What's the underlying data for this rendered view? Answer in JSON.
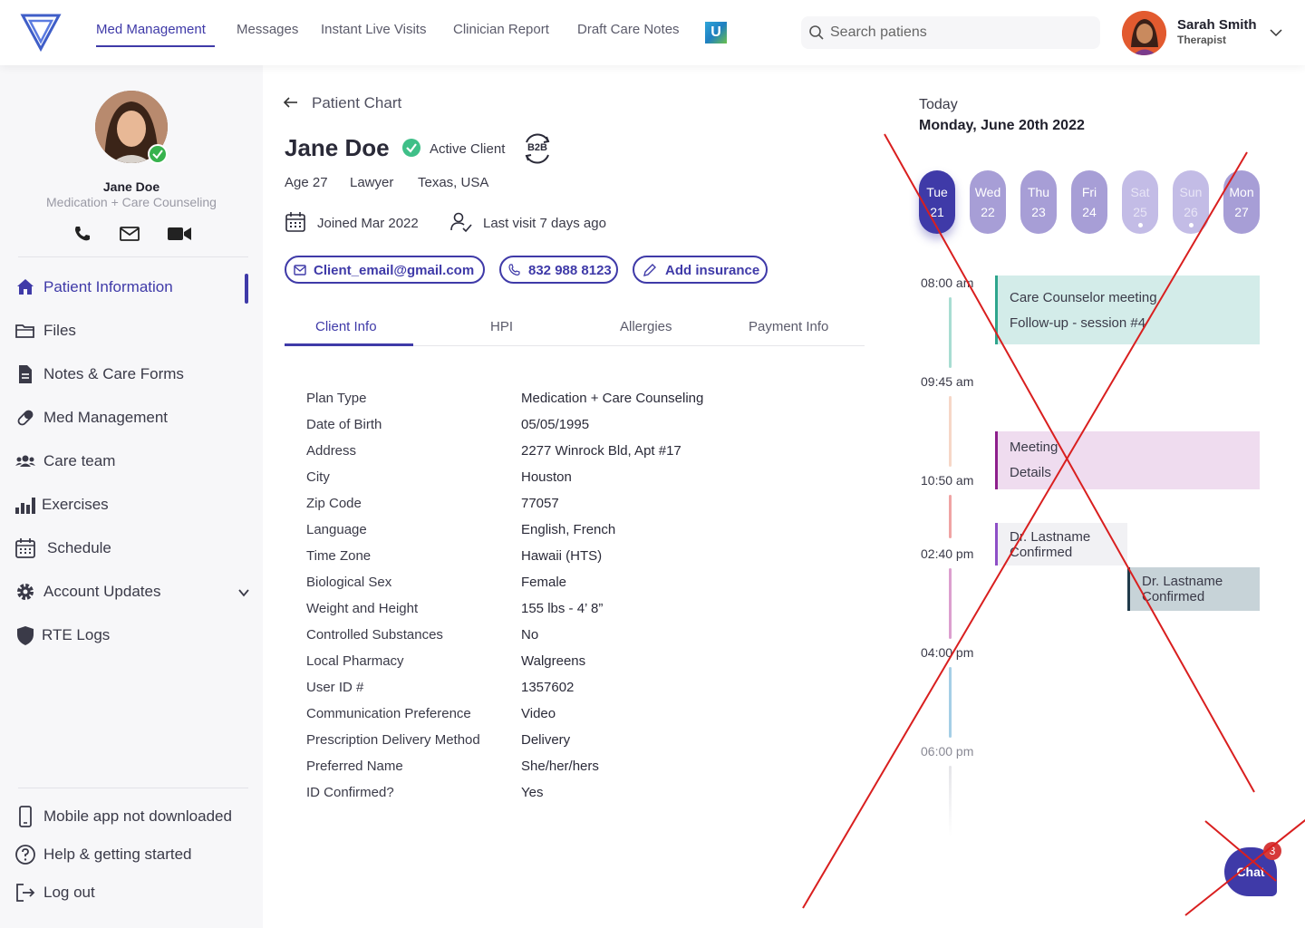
{
  "nav": {
    "items": [
      {
        "label": "Med Management"
      },
      {
        "label": "Messages"
      },
      {
        "label": "Instant Live Visits"
      },
      {
        "label": "Clinician Report"
      },
      {
        "label": "Draft Care Notes"
      }
    ],
    "badge": "U",
    "search_placeholder": "Search patiens"
  },
  "user": {
    "name": "Sarah Smith",
    "role": "Therapist"
  },
  "sidebar": {
    "patient_name": "Jane Doe",
    "patient_plan": "Medication + Care Counseling",
    "menu": [
      {
        "label": "Patient Information",
        "icon": "home-icon"
      },
      {
        "label": "Files",
        "icon": "folder-icon"
      },
      {
        "label": "Notes & Care Forms",
        "icon": "document-icon"
      },
      {
        "label": "Med Management",
        "icon": "pill-icon"
      },
      {
        "label": "Care team",
        "icon": "team-icon"
      },
      {
        "label": "Exercises",
        "icon": "chart-icon"
      },
      {
        "label": "Schedule",
        "icon": "calendar-icon"
      },
      {
        "label": "Account Updates",
        "icon": "gear-icon"
      },
      {
        "label": "RTE Logs",
        "icon": "shield-icon"
      }
    ],
    "footer": [
      {
        "label": "Mobile app not downloaded",
        "icon": "phone-device-icon"
      },
      {
        "label": "Help & getting started",
        "icon": "help-icon"
      },
      {
        "label": "Log out",
        "icon": "logout-icon"
      }
    ]
  },
  "patient": {
    "breadcrumb": "Patient Chart",
    "name": "Jane Doe",
    "status": "Active Client",
    "badge": "B2B",
    "age": "Age 27",
    "occupation": "Lawyer",
    "location": "Texas, USA",
    "joined": "Joined Mar 2022",
    "last_visit": "Last visit 7 days ago",
    "email": "Client_email@gmail.com",
    "phone": "832 988 8123",
    "add_insurance": "Add insurance"
  },
  "tabs": [
    {
      "label": "Client Info"
    },
    {
      "label": "HPI"
    },
    {
      "label": "Allergies"
    },
    {
      "label": "Payment Info"
    }
  ],
  "client_info": [
    {
      "key": "Plan Type",
      "value": "Medication + Care Counseling"
    },
    {
      "key": "Date of Birth",
      "value": "05/05/1995"
    },
    {
      "key": "Address",
      "value": "2277 Winrock Bld, Apt #17"
    },
    {
      "key": "City",
      "value": "Houston"
    },
    {
      "key": "Zip Code",
      "value": "77057"
    },
    {
      "key": "Language",
      "value": "English, French"
    },
    {
      "key": "Time Zone",
      "value": "Hawaii (HTS)"
    },
    {
      "key": "Biological Sex",
      "value": "Female"
    },
    {
      "key": "Weight and Height",
      "value": "155 lbs - 4’ 8”"
    },
    {
      "key": "Controlled Substances",
      "value": "No"
    },
    {
      "key": "Local Pharmacy",
      "value": "Walgreens"
    },
    {
      "key": "User ID #",
      "value": "1357602"
    },
    {
      "key": "Communication Preference",
      "value": "Video"
    },
    {
      "key": "Prescription Delivery Method",
      "value": "Delivery"
    },
    {
      "key": "Preferred Name",
      "value": "She/her/hers"
    },
    {
      "key": "ID Confirmed?",
      "value": "Yes"
    }
  ],
  "schedule": {
    "today_label": "Today",
    "date": "Monday, June 20th 2022",
    "days": [
      {
        "name": "Tue",
        "num": "21"
      },
      {
        "name": "Wed",
        "num": "22"
      },
      {
        "name": "Thu",
        "num": "23"
      },
      {
        "name": "Fri",
        "num": "24"
      },
      {
        "name": "Sat",
        "num": "25"
      },
      {
        "name": "Sun",
        "num": "26"
      },
      {
        "name": "Mon",
        "num": "27"
      }
    ],
    "times": [
      "08:00 am",
      "09:45 am",
      "10:50 am",
      "02:40 pm",
      "04:00 pm",
      "06:00 pm"
    ],
    "events": [
      {
        "line1": "Care Counselor meeting",
        "line2": "Follow-up - session #4",
        "color": "#2fa58d"
      },
      {
        "line1": "Meeting",
        "line2": "Details",
        "color": "#8e1f8c"
      },
      {
        "line1": "Dr. Lastname",
        "line2": "Confirmed",
        "color": "#8e4fc6"
      },
      {
        "line1": "Dr. Lastname",
        "line2": "Confirmed",
        "color": "#1f3a4a"
      }
    ]
  },
  "chat": {
    "label": "Chat",
    "count": "3"
  },
  "colors": {
    "accent": "#3f3aa8",
    "overlay_x": "#d91f1f"
  }
}
